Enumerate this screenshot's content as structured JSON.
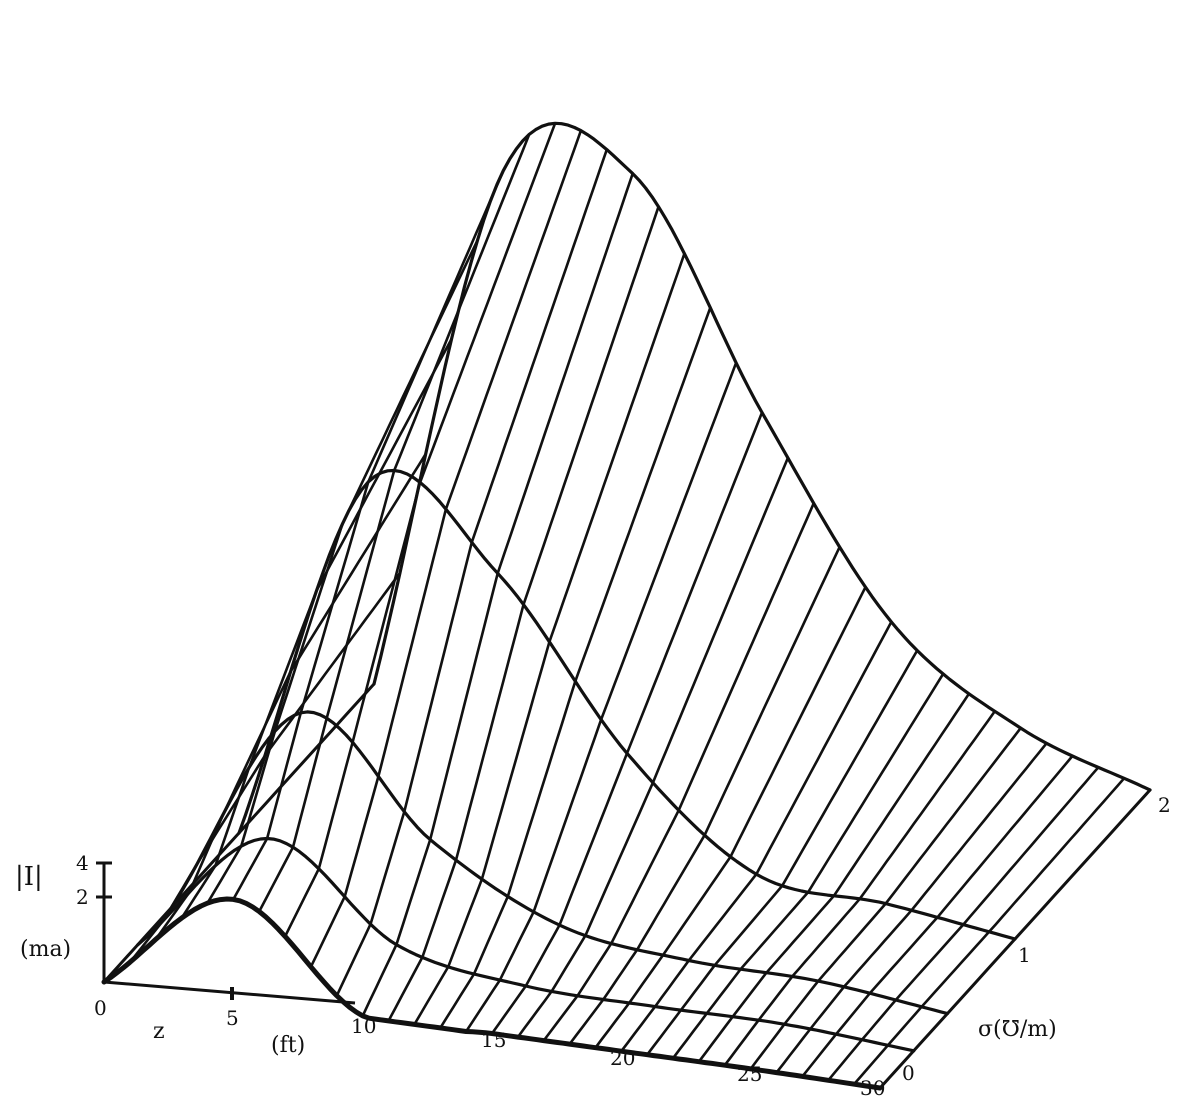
{
  "chart_data": {
    "type": "surface",
    "z_label": "z",
    "z_unit": "(ft)",
    "z_ticks": [
      "0",
      "5",
      "10",
      "15",
      "20",
      "25",
      "30"
    ],
    "sigma_label": "σ(℧/m)",
    "sigma_ticks": [
      "0",
      "1",
      "2"
    ],
    "i_label": "|I|",
    "i_unit": "(ma)",
    "i_ticks": [
      "2",
      "4"
    ],
    "z_range": [
      0,
      30
    ],
    "sigma_range": [
      0,
      2
    ],
    "i_range": [
      0,
      4
    ],
    "series": [
      {
        "sigma": 0.0,
        "z": [
          0,
          5,
          10,
          15,
          20,
          25,
          30
        ],
        "I": [
          0,
          3.4,
          0.05,
          0.05,
          0.05,
          0.05,
          0.0
        ]
      },
      {
        "sigma": 0.25,
        "z": [
          0,
          5,
          10,
          15,
          20,
          25,
          30
        ],
        "I": [
          0,
          4.2,
          1.2,
          0.4,
          0.3,
          0.3,
          0.0
        ]
      },
      {
        "sigma": 0.5,
        "z": [
          0,
          5,
          10,
          15,
          20,
          25,
          30
        ],
        "I": [
          0,
          7.2,
          3.5,
          1.2,
          0.6,
          0.5,
          0.0
        ]
      },
      {
        "sigma": 1.0,
        "z": [
          0,
          5,
          10,
          15,
          20,
          25,
          30
        ],
        "I": [
          0,
          12.5,
          10.0,
          4.5,
          1.0,
          0.6,
          0.0
        ]
      },
      {
        "sigma": 2.0,
        "z": [
          0,
          5,
          10,
          15,
          20,
          25,
          30
        ],
        "I": [
          0,
          18.0,
          18.5,
          11.0,
          4.5,
          1.5,
          0.0
        ]
      }
    ]
  }
}
